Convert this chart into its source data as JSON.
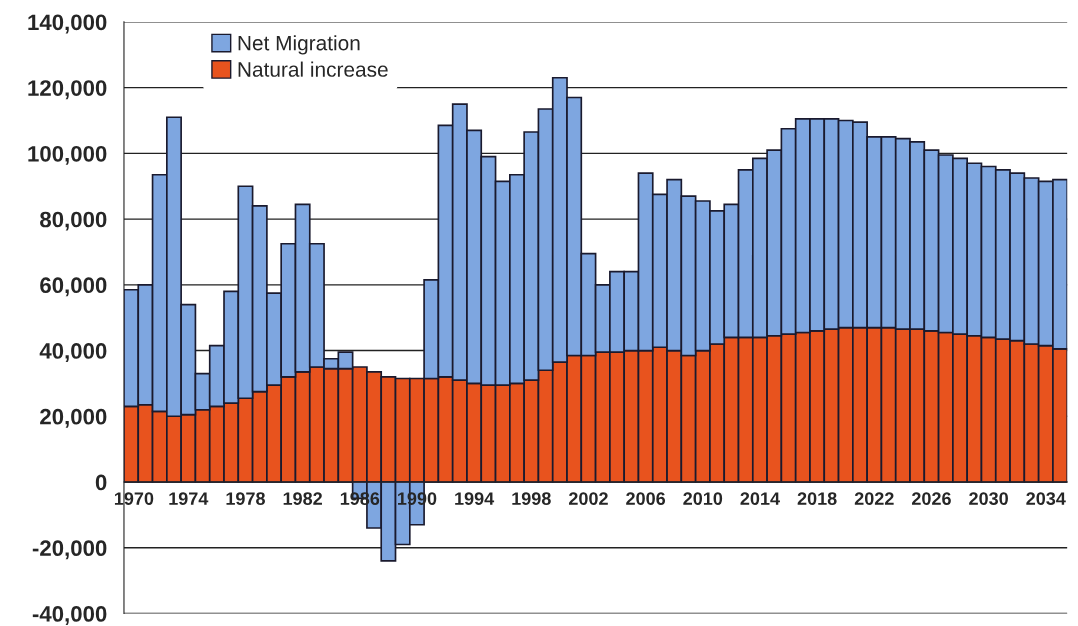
{
  "chart_data": {
    "type": "bar",
    "stacked": true,
    "categories": [
      "1970",
      null,
      null,
      null,
      "1974",
      null,
      null,
      null,
      "1978",
      null,
      null,
      null,
      "1982",
      null,
      null,
      null,
      "1986",
      null,
      null,
      null,
      "1990",
      null,
      null,
      null,
      "1994",
      null,
      null,
      null,
      "1998",
      null,
      null,
      null,
      "2002",
      null,
      null,
      null,
      "2006",
      null,
      null,
      null,
      "2010",
      null,
      null,
      null,
      "2014",
      null,
      null,
      null,
      "2018",
      null,
      null,
      null,
      "2022",
      null,
      null,
      null,
      "2026",
      null,
      null,
      null,
      "2030",
      null,
      null,
      null,
      "2034",
      null
    ],
    "series": [
      {
        "name": "Natural increase",
        "color": "#e8531e",
        "values": [
          23000,
          23500,
          21500,
          20000,
          20500,
          22000,
          23000,
          24000,
          25500,
          27500,
          29500,
          32000,
          33500,
          35000,
          34500,
          34500,
          35000,
          33500,
          32000,
          31500,
          31500,
          31500,
          32000,
          31000,
          30000,
          29500,
          29500,
          30000,
          31000,
          34000,
          36500,
          38500,
          38500,
          39500,
          39500,
          40000,
          40000,
          41000,
          40000,
          38500,
          40000,
          42000,
          44000,
          44000,
          44000,
          44500,
          45000,
          45500,
          46000,
          46500,
          47000,
          47000,
          47000,
          47000,
          46500,
          46500,
          46000,
          45500,
          45000,
          44500,
          44000,
          43500,
          43000,
          42000,
          41500,
          40500
        ]
      },
      {
        "name": "Net Migration",
        "color": "#7ea6e0",
        "values": [
          35500,
          36500,
          72000,
          91000,
          33500,
          11000,
          18500,
          34000,
          64500,
          56500,
          28000,
          40500,
          51000,
          37500,
          3000,
          5000,
          -5000,
          -14000,
          -24000,
          -19000,
          -13000,
          30000,
          76500,
          84000,
          77000,
          69500,
          62000,
          63500,
          75500,
          79500,
          86500,
          78500,
          31000,
          20500,
          24500,
          24000,
          54000,
          46500,
          52000,
          48500,
          45500,
          40500,
          40500,
          51000,
          54500,
          56500,
          62500,
          65000,
          64500,
          64000,
          63000,
          62500,
          58000,
          58000,
          58000,
          57000,
          55000,
          54000,
          53500,
          52500,
          52000,
          51500,
          51000,
          50500,
          50000,
          51500
        ]
      }
    ],
    "ylim": [
      -40000,
      140000
    ],
    "yticks": [
      {
        "value": -40000,
        "label": "-40,000"
      },
      {
        "value": -20000,
        "label": "-20,000"
      },
      0,
      {
        "value": 20000,
        "label": "20,000"
      },
      {
        "value": 40000,
        "label": "40,000"
      },
      {
        "value": 60000,
        "label": "60,000"
      },
      {
        "value": 80000,
        "label": "80,000"
      },
      {
        "value": 100000,
        "label": "100,000"
      },
      {
        "value": 120000,
        "label": "120,000"
      },
      {
        "value": 140000,
        "label": "140,000"
      }
    ],
    "grid": "y",
    "legend": "top left"
  }
}
